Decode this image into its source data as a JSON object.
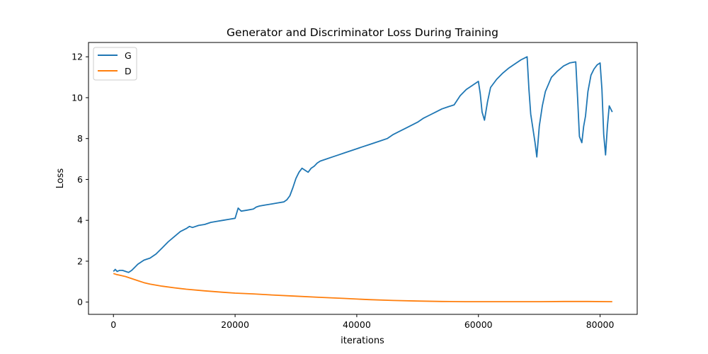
{
  "chart_data": {
    "type": "line",
    "title": "Generator and Discriminator Loss During Training",
    "xlabel": "iterations",
    "ylabel": "Loss",
    "xlim": [
      -4100,
      86100
    ],
    "ylim": [
      -0.6,
      12.7
    ],
    "xticks": [
      0,
      20000,
      40000,
      60000,
      80000
    ],
    "yticks": [
      0,
      2,
      4,
      6,
      8,
      10,
      12
    ],
    "grid": false,
    "legend_position": "upper-left",
    "series": [
      {
        "name": "G",
        "color": "#1f77b4",
        "x": [
          0,
          300,
          600,
          1000,
          1500,
          2000,
          2500,
          3000,
          3500,
          4000,
          4500,
          5000,
          5500,
          6000,
          7000,
          8000,
          9000,
          10000,
          11000,
          12000,
          12500,
          13000,
          14000,
          15000,
          16000,
          17000,
          18000,
          19000,
          20000,
          20500,
          21000,
          22000,
          23000,
          23500,
          24000,
          25000,
          26000,
          27000,
          28000,
          28500,
          29000,
          29500,
          30000,
          30500,
          31000,
          31500,
          32000,
          32500,
          33000,
          33500,
          34000,
          35000,
          36000,
          37000,
          38000,
          39000,
          40000,
          41000,
          42000,
          43000,
          44000,
          45000,
          46000,
          47000,
          48000,
          49000,
          50000,
          51000,
          52000,
          53000,
          54000,
          55000,
          56000,
          57000,
          58000,
          59000,
          60000,
          60300,
          60600,
          61000,
          61500,
          62000,
          63000,
          64000,
          65000,
          66000,
          67000,
          68000,
          68300,
          68600,
          69000,
          69300,
          69600,
          70000,
          70500,
          71000,
          71500,
          72000,
          73000,
          74000,
          75000,
          76000,
          76300,
          76600,
          77000,
          77300,
          77600,
          78000,
          78500,
          79000,
          79500,
          80000,
          80300,
          80600,
          80900,
          81200,
          81500,
          82000
        ],
        "values": [
          1.5,
          1.6,
          1.5,
          1.55,
          1.55,
          1.5,
          1.45,
          1.55,
          1.7,
          1.85,
          1.95,
          2.05,
          2.1,
          2.15,
          2.35,
          2.65,
          2.95,
          3.2,
          3.45,
          3.6,
          3.7,
          3.65,
          3.75,
          3.8,
          3.9,
          3.95,
          4.0,
          4.05,
          4.1,
          4.6,
          4.45,
          4.5,
          4.55,
          4.65,
          4.7,
          4.75,
          4.8,
          4.85,
          4.9,
          5.0,
          5.2,
          5.6,
          6.05,
          6.35,
          6.55,
          6.45,
          6.35,
          6.55,
          6.65,
          6.8,
          6.9,
          7.0,
          7.1,
          7.2,
          7.3,
          7.4,
          7.5,
          7.6,
          7.7,
          7.8,
          7.9,
          8.0,
          8.2,
          8.35,
          8.5,
          8.65,
          8.8,
          9.0,
          9.15,
          9.3,
          9.45,
          9.55,
          9.65,
          10.1,
          10.4,
          10.6,
          10.8,
          10.2,
          9.3,
          8.9,
          9.8,
          10.5,
          10.9,
          11.2,
          11.45,
          11.65,
          11.85,
          12.0,
          10.4,
          9.2,
          8.4,
          7.8,
          7.1,
          8.6,
          9.6,
          10.3,
          10.65,
          11.0,
          11.3,
          11.55,
          11.7,
          11.75,
          10.0,
          8.1,
          7.8,
          8.6,
          9.1,
          10.3,
          11.1,
          11.4,
          11.6,
          11.7,
          10.4,
          8.2,
          7.2,
          8.6,
          9.6,
          9.3
        ]
      },
      {
        "name": "D",
        "color": "#ff7f0e",
        "x": [
          0,
          500,
          1000,
          2000,
          3000,
          4000,
          5000,
          6000,
          8000,
          10000,
          12000,
          15000,
          18000,
          20000,
          23000,
          26000,
          30000,
          34000,
          38000,
          42000,
          46000,
          50000,
          54000,
          58000,
          62000,
          66000,
          70000,
          74000,
          78000,
          82000
        ],
        "values": [
          1.4,
          1.35,
          1.32,
          1.25,
          1.15,
          1.05,
          0.95,
          0.88,
          0.78,
          0.7,
          0.63,
          0.55,
          0.48,
          0.44,
          0.4,
          0.35,
          0.29,
          0.23,
          0.18,
          0.12,
          0.08,
          0.05,
          0.03,
          0.02,
          0.02,
          0.02,
          0.02,
          0.03,
          0.03,
          0.02
        ]
      }
    ]
  }
}
